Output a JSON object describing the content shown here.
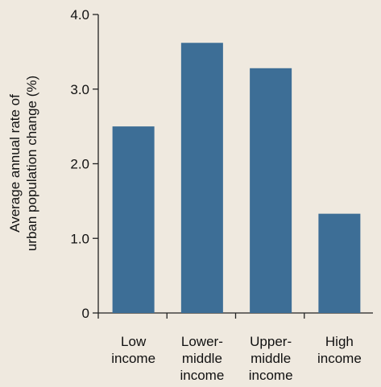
{
  "chart_data": {
    "type": "bar",
    "title": "",
    "xlabel": "",
    "ylabel": [
      "Average annual rate of",
      "urban population change (%)"
    ],
    "ylim": [
      0,
      4.0
    ],
    "yticks": [
      "0",
      "1.0",
      "2.0",
      "3.0",
      "4.0"
    ],
    "ytick_values": [
      0,
      1.0,
      2.0,
      3.0,
      4.0
    ],
    "categories": [
      [
        "Low",
        "income"
      ],
      [
        "Lower-",
        "middle",
        "income"
      ],
      [
        "Upper-",
        "middle",
        "income"
      ],
      [
        "High",
        "income"
      ]
    ],
    "values": [
      2.5,
      3.62,
      3.28,
      1.33
    ],
    "bar_color": "#3d6e96",
    "axis_color": "#222222",
    "background": "#efe9df",
    "grid": false,
    "legend": "none"
  }
}
